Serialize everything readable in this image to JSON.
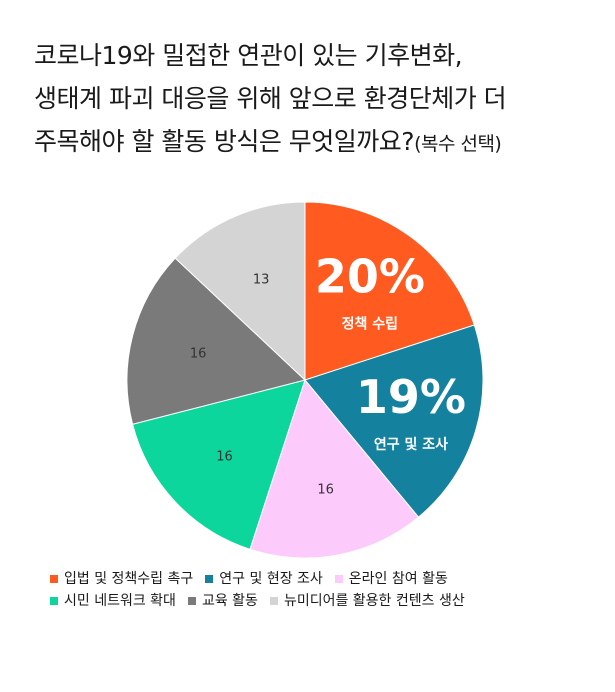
{
  "title": {
    "line1": "코로나19와 밀접한 연관이 있는 기후변화,",
    "line2": "생태계 파괴 대응을 위해 앞으로 환경단체가 더",
    "line3": "주목해야 할 활동 방식은 무엇일까요?",
    "line3_suffix": "(복수 선택)"
  },
  "chart_data": {
    "type": "pie",
    "title": "코로나19와 밀접한 연관이 있는 기후변화, 생태계 파괴 대응을 위해 앞으로 환경단체가 더 주목해야 할 활동 방식은 무엇일까요?(복수 선택)",
    "unit": "%",
    "slices": [
      {
        "label": "입법 및 정책수립 촉구",
        "value": 20,
        "display": "20%",
        "inner_label": "정책 수립",
        "color": "#FF5A1F"
      },
      {
        "label": "연구 및 현장 조사",
        "value": 19,
        "display": "19%",
        "inner_label": "연구 및 조사",
        "color": "#14819F"
      },
      {
        "label": "온라인 참여 활동",
        "value": 16,
        "display": "16",
        "inner_label": "",
        "color": "#FCCBFB"
      },
      {
        "label": "시민 네트워크 확대",
        "value": 16,
        "display": "16",
        "inner_label": "",
        "color": "#0DD69C"
      },
      {
        "label": "교육 활동",
        "value": 16,
        "display": "16",
        "inner_label": "",
        "color": "#7A7A7A"
      },
      {
        "label": "뉴미디어를 활용한 컨텐츠 생산",
        "value": 13,
        "display": "13",
        "inner_label": "",
        "color": "#D4D4D4"
      }
    ],
    "start_angle_deg": 0,
    "direction": "clockwise",
    "legend_position": "bottom"
  }
}
